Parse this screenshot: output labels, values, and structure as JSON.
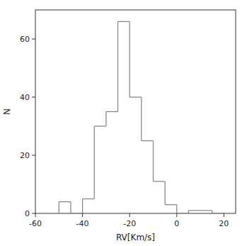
{
  "chart_data": {
    "type": "histogram",
    "bins": [
      -50,
      -45,
      -40,
      -35,
      -30,
      -25,
      -20,
      -15,
      -10,
      -5,
      0,
      5,
      10,
      15,
      20
    ],
    "values": [
      4,
      0,
      5,
      30,
      35,
      66,
      40,
      25,
      11,
      3,
      0,
      1,
      1,
      0
    ],
    "xlim": [
      -60,
      25
    ],
    "ylim": [
      0,
      70
    ],
    "xticks": [
      -60,
      -40,
      -20,
      0,
      20
    ],
    "yticks": [
      0,
      20,
      40,
      60
    ],
    "xlabel": "RV[Km/s]",
    "ylabel": "N",
    "color": "#808080"
  }
}
